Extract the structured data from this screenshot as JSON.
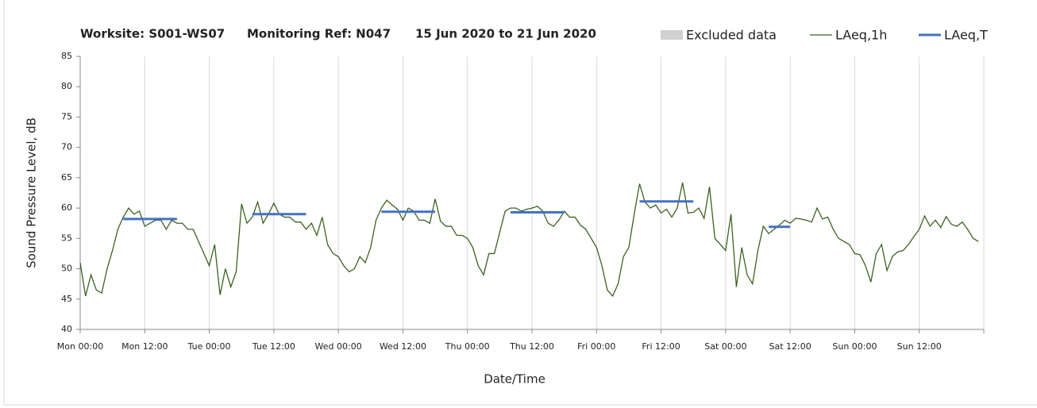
{
  "chart_data": {
    "type": "line",
    "title_parts": [
      "Worksite: S001-WS07",
      "Monitoring Ref: N047",
      "15 Jun 2020 to 21 Jun 2020"
    ],
    "y_label": "Sound Pressure Level, dB",
    "x_label": "Date/Time",
    "xlim": [
      0,
      168
    ],
    "xticks": [
      {
        "value": 0,
        "label": "Mon 00:00"
      },
      {
        "value": 12,
        "label": "Mon 12:00"
      },
      {
        "value": 24,
        "label": "Tue 00:00"
      },
      {
        "value": 36,
        "label": "Tue 12:00"
      },
      {
        "value": 48,
        "label": "Wed 00:00"
      },
      {
        "value": 60,
        "label": "Wed 12:00"
      },
      {
        "value": 72,
        "label": "Thu 00:00"
      },
      {
        "value": 84,
        "label": "Thu 12:00"
      },
      {
        "value": 96,
        "label": "Fri 00:00"
      },
      {
        "value": 108,
        "label": "Fri 12:00"
      },
      {
        "value": 120,
        "label": "Sat 00:00"
      },
      {
        "value": 132,
        "label": "Sat 12:00"
      },
      {
        "value": 144,
        "label": "Sun 00:00"
      },
      {
        "value": 156,
        "label": "Sun 12:00"
      },
      {
        "value": 168,
        "label": ""
      }
    ],
    "ylim": [
      40,
      85
    ],
    "yticks": [
      40,
      45,
      50,
      55,
      60,
      65,
      70,
      75,
      80,
      85
    ],
    "grid": true,
    "series": [
      {
        "name": "Excluded data",
        "color": "#d0d0d0",
        "values": []
      },
      {
        "name": "LAeq,1h",
        "color": "#3b6220",
        "x": [
          0,
          1,
          2,
          3,
          4,
          5,
          6,
          7,
          8,
          9,
          10,
          11,
          12,
          13,
          14,
          15,
          16,
          17,
          18,
          19,
          20,
          21,
          22,
          23,
          24,
          25,
          26,
          27,
          28,
          29,
          30,
          31,
          32,
          33,
          34,
          35,
          36,
          37,
          38,
          39,
          40,
          41,
          42,
          43,
          44,
          45,
          46,
          47,
          48,
          49,
          50,
          51,
          52,
          53,
          54,
          55,
          56,
          57,
          58,
          59,
          60,
          61,
          62,
          63,
          64,
          65,
          66,
          67,
          68,
          69,
          70,
          71,
          72,
          73,
          74,
          75,
          76,
          77,
          78,
          79,
          80,
          81,
          82,
          83,
          84,
          85,
          86,
          87,
          88,
          89,
          90,
          91,
          92,
          93,
          94,
          95,
          96,
          97,
          98,
          99,
          100,
          101,
          102,
          103,
          104,
          105,
          106,
          107,
          108,
          109,
          110,
          111,
          112,
          113,
          114,
          115,
          116,
          117,
          118,
          119,
          120,
          121,
          122,
          123,
          124,
          125,
          126,
          127,
          128,
          129,
          130,
          131,
          132,
          133,
          134,
          135,
          136,
          137,
          138,
          139,
          140,
          141,
          142,
          143,
          144,
          145,
          146,
          147,
          148,
          149,
          150,
          151,
          152,
          153,
          154,
          155,
          156,
          157,
          158,
          159,
          160,
          161,
          162,
          163,
          164,
          165,
          166,
          167
        ],
        "values": [
          51,
          45.5,
          49,
          46.5,
          46,
          50,
          53,
          56.5,
          58.5,
          60,
          59,
          59.5,
          57,
          57.5,
          58,
          58,
          56.5,
          58,
          57.5,
          57.5,
          56.5,
          56.5,
          54.5,
          52.5,
          50.5,
          54,
          45.7,
          50,
          47,
          49.5,
          60.7,
          57.5,
          58.5,
          61,
          57.5,
          59,
          60.8,
          59,
          58.5,
          58.5,
          57.7,
          57.7,
          56.5,
          57.5,
          55.5,
          58.5,
          54,
          52.5,
          52,
          50.5,
          49.5,
          50,
          52,
          51,
          53.5,
          58,
          60,
          61.3,
          60.5,
          59.8,
          58,
          60,
          59.5,
          58,
          58,
          57.5,
          61.5,
          57.8,
          57,
          57,
          55.5,
          55.5,
          55,
          53.5,
          50.5,
          49,
          52.5,
          52.5,
          56,
          59.5,
          60,
          60,
          59.5,
          59.8,
          60,
          60.3,
          59.5,
          57.5,
          57,
          58,
          59.5,
          58.5,
          58.5,
          57.2,
          56.5,
          55,
          53.5,
          50.5,
          46.5,
          45.5,
          47.5,
          52,
          53.5,
          59,
          64,
          61,
          60,
          60.5,
          59.2,
          59.8,
          58.5,
          60,
          64.2,
          59.2,
          59.3,
          60,
          58.3,
          63.5,
          55,
          54,
          53,
          59,
          47,
          53.5,
          49,
          47.5,
          53,
          57,
          55.8,
          56.5,
          57.2,
          58,
          57.5,
          58.3,
          58.2,
          58,
          57.7,
          60,
          58.2,
          58.5,
          56.5,
          55,
          54.5,
          54,
          52.5,
          52.3,
          50.5,
          47.8,
          52.5,
          54,
          49.7,
          52,
          52.8,
          53,
          54,
          55.3,
          56.5,
          58.7,
          57,
          58,
          56.8,
          58.6,
          57.3,
          57,
          57.7,
          56.5,
          55,
          54.5
        ]
      },
      {
        "name": "LAeq,T",
        "color": "#4472c4",
        "periods": [
          {
            "start": 8,
            "end": 18,
            "value": 58.2
          },
          {
            "start": 32,
            "end": 42,
            "value": 59
          },
          {
            "start": 56,
            "end": 66,
            "value": 59.4
          },
          {
            "start": 80,
            "end": 90,
            "value": 59.3
          },
          {
            "start": 104,
            "end": 114,
            "value": 61.1
          },
          {
            "start": 128,
            "end": 132,
            "value": 56.9
          }
        ]
      }
    ]
  }
}
